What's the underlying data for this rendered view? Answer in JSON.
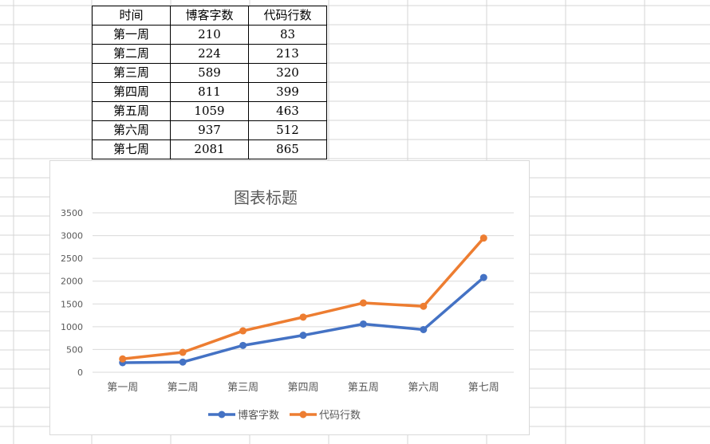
{
  "table": {
    "headers": [
      "时间",
      "博客字数",
      "代码行数"
    ],
    "rows": [
      [
        "第一周",
        "210",
        "83"
      ],
      [
        "第二周",
        "224",
        "213"
      ],
      [
        "第三周",
        "589",
        "320"
      ],
      [
        "第四周",
        "811",
        "399"
      ],
      [
        "第五周",
        "1059",
        "463"
      ],
      [
        "第六周",
        "937",
        "512"
      ],
      [
        "第七周",
        "2081",
        "865"
      ]
    ]
  },
  "chart_data": {
    "type": "line",
    "stacked": true,
    "title": "图表标题",
    "categories": [
      "第一周",
      "第二周",
      "第三周",
      "第四周",
      "第五周",
      "第六周",
      "第七周"
    ],
    "series": [
      {
        "name": "博客字数",
        "color": "#4472c4",
        "values": [
          210,
          224,
          589,
          811,
          1059,
          937,
          2081
        ]
      },
      {
        "name": "代码行数",
        "color": "#ed7d31",
        "values": [
          83,
          213,
          320,
          399,
          463,
          512,
          865
        ]
      }
    ],
    "ylim": [
      0,
      3500
    ],
    "yticks": [
      "0",
      "500",
      "1000",
      "1500",
      "2000",
      "2500",
      "3000",
      "3500"
    ],
    "grid": true,
    "legend": "bottom"
  }
}
